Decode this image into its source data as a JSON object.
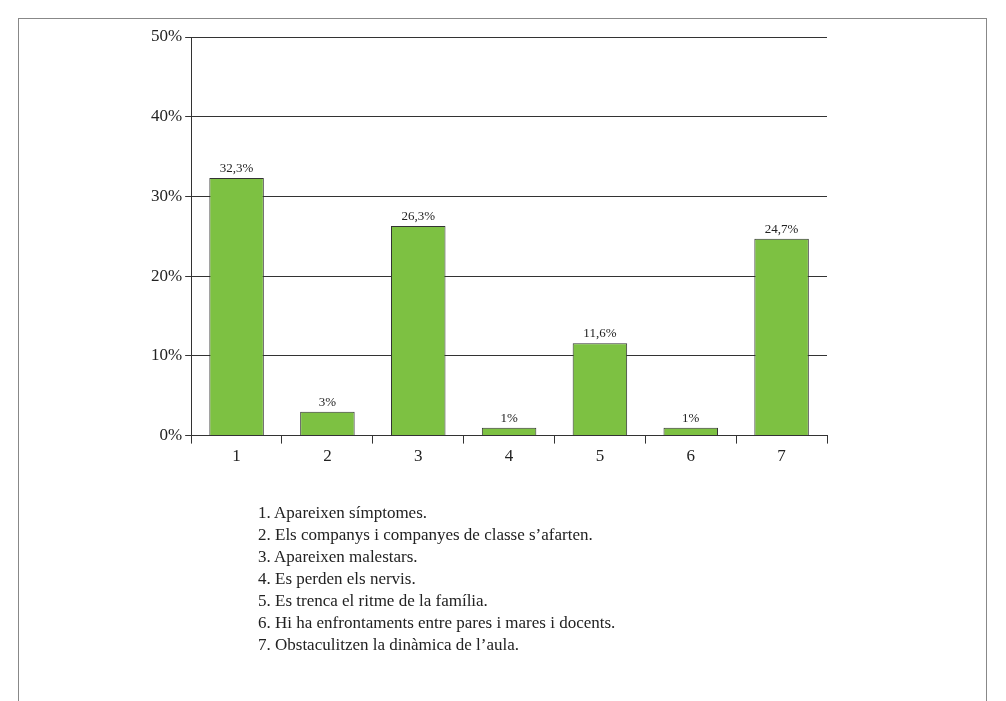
{
  "chart_data": {
    "type": "bar",
    "categories": [
      "1",
      "2",
      "3",
      "4",
      "5",
      "6",
      "7"
    ],
    "values": [
      32.3,
      3,
      26.3,
      1,
      11.6,
      1,
      24.7
    ],
    "value_labels": [
      "32,3%",
      "3%",
      "26,3%",
      "1%",
      "11,6%",
      "1%",
      "24,7%"
    ],
    "color": "#7dc142",
    "ylim": [
      0,
      50
    ],
    "yticks": [
      {
        "value": 0,
        "label": "0%"
      },
      {
        "value": 10,
        "label": "10%"
      },
      {
        "value": 20,
        "label": "20%"
      },
      {
        "value": 30,
        "label": "30%"
      },
      {
        "value": 40,
        "label": "40%"
      },
      {
        "value": 50,
        "label": "50%"
      }
    ],
    "grid": "y",
    "legend": false,
    "annotations": [
      "1. Apareixen símptomes.",
      "2. Els companys i companyes de classe s’afarten.",
      "3. Apareixen malestars.",
      "4. Es perden els nervis.",
      "5. Es trenca el ritme de la família.",
      "6. Hi ha enfrontaments entre pares i mares i docents.",
      "7. Obstaculitzen la dinàmica de l’aula."
    ]
  }
}
